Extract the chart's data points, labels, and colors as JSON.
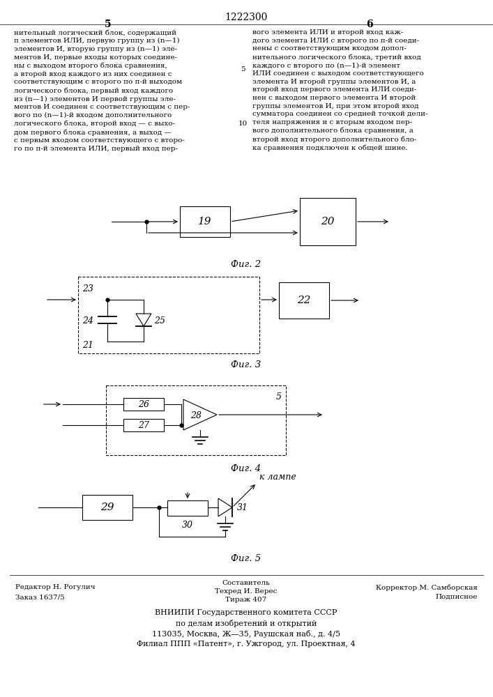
{
  "page_title": "1222300",
  "col_left": "5",
  "col_right": "6",
  "text_left": "нительный логический блок, содержащий\nп элементов ИЛИ, первую группу из (n—1)\nэлементов И, вторую группу из (n—1) эле-\nментов И, первые входы которых соедине-\nны с выходом второго блока сравнения,\nа второй вход каждого из них соединен с\nсоответствующим с второго по п-й выходом\nлогического блока, первый вход каждого\nиз (n—1) элементов И первой группы эле-\nментов И соединен с соответствующим с пер-\nвого по (n—1)-й входом дополнительного\nлогического блока, второй вход — с выхо-\nдом первого блока сравнения, а выход —\nс первым входом соответствующего с второ-\nго по п-й элемента ИЛИ, первый вход пер-",
  "text_right": "вого элемента ИЛИ и второй вход каж-\nдого элемента ИЛИ с второго по п-й соеди-\nнены с соответствующим входом допол-\nнительного логического блока, третий вход\nкаждого с второго по (n—1)-й элемент\nИЛИ соединен с выходом соответствующего\nэлемента И второй группы элементов И, а\nвторой вход первого элемента ИЛИ соеди-\nнен с выходом первого элемента И второй\nгруппы элементов И, при этом второй вход\nсумматора соединен со средней точкой дели-\nтеля напряжения и с вторым входом пер-\nвого дополнительного блока сравнения, а\nвторой вход второго дополнительного бло-\nка сравнения подключен к общей шине.",
  "line_num_5": "5",
  "line_num_10": "10",
  "fig2_label": "Фиг. 2",
  "fig3_label": "Фиг. 3",
  "fig4_label": "Фиг. 4",
  "fig5_label": "Фиг. 5",
  "footer_left1": "Редактор Н. Рогулич",
  "footer_left2": "Заказ 1637/5",
  "footer_center1": "Составитель",
  "footer_center2": "Техред И. Верес",
  "footer_center3": "Тираж 407",
  "footer_right1": "Корректор М. Самборская",
  "footer_right2": "Подписное",
  "footer_main": "ВНИИПИ Государственного комитета СССР\nпо делам изобретений и открытий\n113035, Москва, Ж—35, Раушская наб., д. 4/5\nФилиал ППП «Патент», г. Ужгород, ул. Проектная, 4",
  "box19_label": "19",
  "box20_label": "20",
  "box21_label": "21",
  "box22_label": "22",
  "box23_label": "23",
  "box24_label": "24",
  "box25_label": "25",
  "box26_label": "26",
  "box27_label": "27",
  "box28_label": "28",
  "box29_label": "29",
  "box30_label": "30",
  "box31_label": "31",
  "box5_label": "5",
  "k_lampe": "к лампе"
}
